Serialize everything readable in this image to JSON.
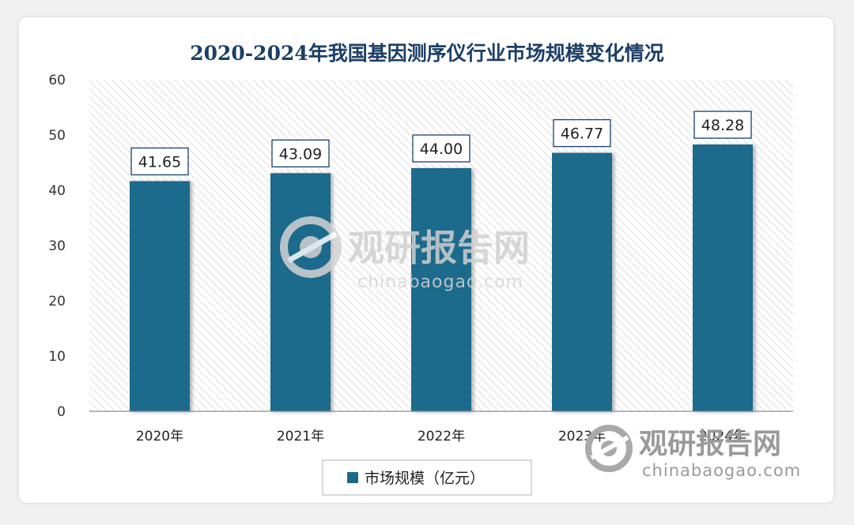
{
  "chart_data": {
    "type": "bar",
    "title": "2020-2024年我国基因测序仪行业市场规模变化情况",
    "categories": [
      "2020年",
      "2021年",
      "2022年",
      "2023年",
      "2024年"
    ],
    "series": [
      {
        "name": "市场规模（亿元）",
        "values": [
          41.65,
          43.09,
          44.0,
          46.77,
          48.28
        ],
        "labels": [
          "41.65",
          "43.09",
          "44.00",
          "46.77",
          "48.28"
        ]
      }
    ],
    "ylim": [
      0,
      60
    ],
    "yticks": [
      "0",
      "10",
      "20",
      "30",
      "40",
      "50",
      "60"
    ],
    "grid": false,
    "legend_position": "bottom",
    "colors": {
      "bar": "#1b6a8c",
      "title": "#1c3f66",
      "plot_hatch": "#d9d9d9"
    }
  },
  "watermark": {
    "center_name": "观研报告网",
    "center_url": "chinabaogao.com",
    "corner_name": "观研报告网",
    "corner_url": "chinabaogao.com",
    "icon": "chinabaogao-logo-icon"
  }
}
